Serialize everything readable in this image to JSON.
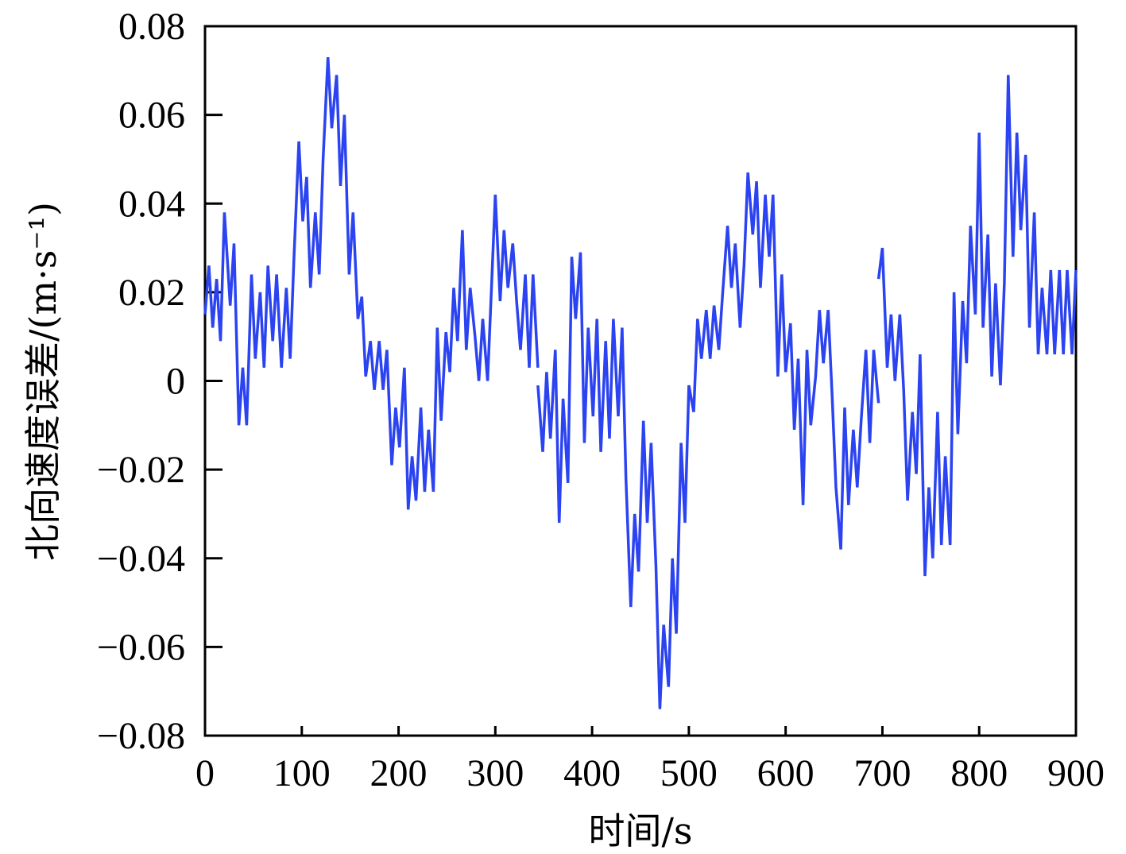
{
  "chart_data": {
    "type": "line",
    "title": "",
    "xlabel": "时间/s",
    "ylabel": "北向速度误差/(m·s⁻¹)",
    "xlim": [
      0,
      900
    ],
    "ylim": [
      -0.08,
      0.08
    ],
    "x_ticks": [
      "0",
      "100",
      "200",
      "300",
      "400",
      "500",
      "600",
      "700",
      "800",
      "900"
    ],
    "y_ticks": [
      "0.08",
      "0.06",
      "0.04",
      "0.02",
      "0",
      "−0.02",
      "−0.04",
      "−0.06",
      "−0.08"
    ],
    "grid": false,
    "legend": "none",
    "series_color": "#2b43f0",
    "series": [
      {
        "name": "",
        "segments": [
          {
            "x": [
              0,
              4,
              8,
              12,
              16,
              20,
              26,
              30,
              35,
              39,
              43,
              48,
              52,
              57,
              61,
              65,
              70,
              74,
              79,
              84,
              88,
              92,
              97,
              101,
              105,
              109,
              114,
              118,
              122,
              127,
              131,
              136,
              140,
              144,
              149,
              153,
              158,
              162,
              166,
              171,
              175,
              180,
              184,
              188,
              193,
              197,
              201,
              206,
              210,
              214,
              218,
              223,
              227,
              231,
              236,
              240,
              244,
              249,
              253,
              257,
              261,
              266,
              270,
              274,
              279,
              283,
              287,
              292,
              296,
              300,
              305,
              309,
              313,
              318,
              322,
              326,
              331,
              335,
              339,
              344
            ],
            "y": [
              0.015,
              0.026,
              0.012,
              0.023,
              0.009,
              0.038,
              0.017,
              0.031,
              -0.01,
              0.003,
              -0.01,
              0.024,
              0.005,
              0.02,
              0.003,
              0.026,
              0.009,
              0.024,
              0.003,
              0.021,
              0.005,
              0.028,
              0.054,
              0.036,
              0.046,
              0.021,
              0.038,
              0.024,
              0.05,
              0.073,
              0.057,
              0.069,
              0.044,
              0.06,
              0.024,
              0.038,
              0.014,
              0.019,
              0.001,
              0.009,
              -0.002,
              0.009,
              -0.002,
              0.007,
              -0.019,
              -0.006,
              -0.015,
              0.003,
              -0.029,
              -0.017,
              -0.027,
              -0.006,
              -0.025,
              -0.011,
              -0.025,
              0.012,
              -0.009,
              0.011,
              0.002,
              0.021,
              0.009,
              0.034,
              0.007,
              0.021,
              0.01,
              0.0,
              0.014,
              0.0,
              0.021,
              0.042,
              0.018,
              0.034,
              0.021,
              0.031,
              0.018,
              0.007,
              0.024,
              0.003,
              0.024,
              0.003
            ]
          },
          {
            "x": [
              344,
              349,
              353,
              357,
              362,
              366,
              370,
              375,
              379,
              383,
              388,
              392,
              396,
              401,
              405,
              409,
              414,
              418,
              422,
              427,
              431,
              435,
              440,
              444,
              448,
              453,
              457,
              461,
              466,
              470,
              474,
              479,
              483,
              487,
              492,
              496,
              500,
              505,
              509,
              513,
              518,
              522,
              526,
              531,
              535,
              540,
              544,
              548,
              553,
              557,
              561,
              566,
              570,
              574,
              579,
              583,
              587,
              592,
              596,
              600,
              605,
              609,
              613,
              618,
              622,
              626,
              631,
              635,
              639,
              644,
              648,
              652,
              657,
              661,
              665,
              670,
              674,
              678,
              683,
              687,
              691,
              696
            ],
            "y": [
              -0.001,
              -0.016,
              0.002,
              -0.013,
              0.007,
              -0.032,
              -0.004,
              -0.023,
              0.028,
              0.014,
              0.029,
              -0.014,
              0.012,
              -0.008,
              0.014,
              -0.016,
              0.009,
              -0.013,
              0.014,
              -0.008,
              0.012,
              -0.022,
              -0.051,
              -0.03,
              -0.043,
              -0.009,
              -0.032,
              -0.014,
              -0.042,
              -0.074,
              -0.055,
              -0.069,
              -0.04,
              -0.057,
              -0.014,
              -0.032,
              -0.001,
              -0.007,
              0.014,
              0.005,
              0.016,
              0.005,
              0.017,
              0.007,
              0.02,
              0.035,
              0.021,
              0.031,
              0.012,
              0.026,
              0.047,
              0.033,
              0.045,
              0.021,
              0.042,
              0.028,
              0.042,
              0.001,
              0.024,
              0.002,
              0.013,
              -0.011,
              0.005,
              -0.028,
              0.007,
              -0.01,
              0.001,
              0.016,
              0.004,
              0.016,
              -0.003,
              -0.024,
              -0.038,
              -0.006,
              -0.028,
              -0.011,
              -0.024,
              -0.009,
              0.007,
              -0.014,
              0.007,
              -0.005
            ]
          },
          {
            "x": [
              696,
              700,
              705,
              709,
              713,
              718,
              722,
              726,
              731,
              735,
              739,
              744,
              748,
              752,
              757,
              761,
              765,
              770,
              774,
              778,
              783,
              787,
              791,
              796,
              800,
              804,
              809,
              813,
              817,
              822,
              826,
              830,
              835,
              839,
              843,
              848,
              852,
              857,
              861,
              865,
              870,
              874,
              878,
              883,
              887,
              891,
              896,
              900
            ],
            "y": [
              0.023,
              0.03,
              0.003,
              0.015,
              0.0,
              0.015,
              -0.002,
              -0.027,
              -0.007,
              -0.021,
              0.006,
              -0.044,
              -0.024,
              -0.04,
              -0.007,
              -0.037,
              -0.017,
              -0.037,
              0.02,
              -0.012,
              0.018,
              0.004,
              0.035,
              0.015,
              0.056,
              0.012,
              0.033,
              0.001,
              0.022,
              -0.001,
              0.022,
              0.069,
              0.028,
              0.056,
              0.034,
              0.051,
              0.012,
              0.038,
              0.006,
              0.021,
              0.006,
              0.025,
              0.006,
              0.025,
              0.006,
              0.025,
              0.006,
              0.025
            ]
          }
        ]
      }
    ]
  }
}
